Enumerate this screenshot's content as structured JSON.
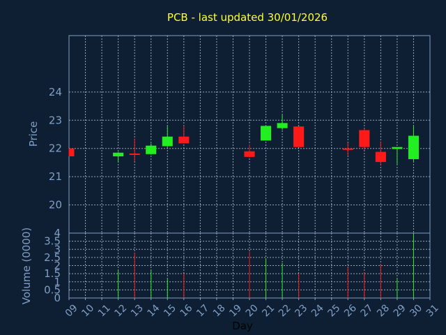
{
  "chart_data": {
    "type": "candlestick",
    "title": "PCB - last updated 30/01/2026",
    "xlabel": "Day",
    "ylabel": "Price",
    "volume_label": "Volume (0000)",
    "x_ticks": [
      "09",
      "10",
      "11",
      "12",
      "13",
      "14",
      "15",
      "16",
      "17",
      "18",
      "19",
      "20",
      "21",
      "22",
      "23",
      "24",
      "25",
      "26",
      "27",
      "28",
      "29",
      "30",
      "31"
    ],
    "price_ticks": [
      "20",
      "21",
      "22",
      "23",
      "24"
    ],
    "volume_ticks": [
      "0",
      "0.5",
      "1",
      "1.5",
      "2",
      "2.5",
      "3",
      "3.5",
      "4"
    ],
    "price_range": [
      19,
      26
    ],
    "volume_range": [
      0,
      4
    ],
    "grid": true,
    "colors": {
      "background": "#0f1f33",
      "grid": "#c8d0dc",
      "axis_text": "#7f9fc4",
      "title": "#ffff33",
      "xlabel": "#000000",
      "up": "#22ee22",
      "down": "#ff1a1a"
    },
    "candles": [
      {
        "day": 9,
        "open": 22.0,
        "high": 22.0,
        "low": 21.72,
        "close": 21.72
      },
      {
        "day": 12,
        "open": 21.72,
        "high": 21.88,
        "low": 21.5,
        "close": 21.85
      },
      {
        "day": 13,
        "open": 21.82,
        "high": 22.35,
        "low": 21.55,
        "close": 21.78
      },
      {
        "day": 14,
        "open": 21.8,
        "high": 22.18,
        "low": 21.78,
        "close": 22.1
      },
      {
        "day": 15,
        "open": 22.08,
        "high": 22.8,
        "low": 22.05,
        "close": 22.42
      },
      {
        "day": 16,
        "open": 22.42,
        "high": 22.8,
        "low": 22.18,
        "close": 22.18
      },
      {
        "day": 20,
        "open": 21.9,
        "high": 22.15,
        "low": 21.68,
        "close": 21.7
      },
      {
        "day": 21,
        "open": 22.28,
        "high": 22.8,
        "low": 22.28,
        "close": 22.8
      },
      {
        "day": 22,
        "open": 22.72,
        "high": 23.2,
        "low": 22.65,
        "close": 22.9
      },
      {
        "day": 23,
        "open": 22.78,
        "high": 22.78,
        "low": 22.05,
        "close": 22.05
      },
      {
        "day": 26,
        "open": 22.0,
        "high": 22.2,
        "low": 21.75,
        "close": 21.98
      },
      {
        "day": 27,
        "open": 22.65,
        "high": 22.72,
        "low": 21.95,
        "close": 22.05
      },
      {
        "day": 28,
        "open": 21.88,
        "high": 22.25,
        "low": 21.42,
        "close": 21.52
      },
      {
        "day": 29,
        "open": 21.98,
        "high": 22.05,
        "low": 21.45,
        "close": 22.05
      },
      {
        "day": 30,
        "open": 21.62,
        "high": 22.82,
        "low": 21.55,
        "close": 22.45
      }
    ],
    "volumes": [
      {
        "day": 12,
        "value": 1.7,
        "up": true
      },
      {
        "day": 13,
        "value": 2.8,
        "up": false
      },
      {
        "day": 14,
        "value": 1.7,
        "up": true
      },
      {
        "day": 15,
        "value": 1.2,
        "up": true
      },
      {
        "day": 16,
        "value": 1.5,
        "up": false
      },
      {
        "day": 20,
        "value": 2.85,
        "up": false
      },
      {
        "day": 21,
        "value": 2.45,
        "up": true
      },
      {
        "day": 22,
        "value": 2.15,
        "up": true
      },
      {
        "day": 23,
        "value": 1.5,
        "up": false
      },
      {
        "day": 26,
        "value": 1.9,
        "up": false
      },
      {
        "day": 27,
        "value": 1.6,
        "up": false
      },
      {
        "day": 28,
        "value": 2.1,
        "up": false
      },
      {
        "day": 29,
        "value": 1.2,
        "up": true
      },
      {
        "day": 30,
        "value": 3.95,
        "up": true
      }
    ]
  }
}
